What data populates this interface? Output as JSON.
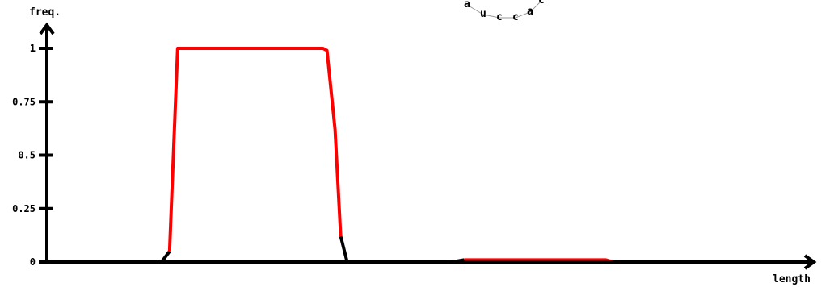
{
  "chart_data": {
    "type": "line",
    "ylabel": "freq.",
    "xlabel": "length",
    "ylim": [
      0,
      1
    ],
    "yticks": [
      {
        "value": 0,
        "label": "0"
      },
      {
        "value": 0.25,
        "label": "0.25"
      },
      {
        "value": 0.5,
        "label": "0.5"
      },
      {
        "value": 0.75,
        "label": "0.75"
      },
      {
        "value": 1,
        "label": "1"
      }
    ],
    "colors": {
      "axis": "#000000",
      "high": "#ff0000",
      "low": "#000000",
      "baseline": "#c0c0c0"
    },
    "segments": [
      {
        "color": "#000000",
        "points": [
          [
            0,
            0
          ],
          [
            140,
            0
          ]
        ]
      },
      {
        "color": "#000000",
        "points": [
          [
            140,
            0
          ],
          [
            150,
            0.05
          ]
        ]
      },
      {
        "color": "#ff0000",
        "points": [
          [
            150,
            0.05
          ],
          [
            160,
            1
          ],
          [
            340,
            1
          ],
          [
            345,
            0.99
          ],
          [
            355,
            0.62
          ],
          [
            362,
            0.12
          ]
        ]
      },
      {
        "color": "#000000",
        "points": [
          [
            362,
            0.12
          ],
          [
            370,
            0
          ],
          [
            500,
            0
          ],
          [
            515,
            0.01
          ]
        ]
      },
      {
        "color": "#ff0000",
        "points": [
          [
            515,
            0.01
          ],
          [
            690,
            0.01
          ],
          [
            700,
            0
          ]
        ]
      },
      {
        "color": "#000000",
        "points": [
          [
            700,
            0
          ],
          [
            935,
            0
          ]
        ]
      }
    ],
    "baseline_range": [
      140,
      375
    ],
    "xmax": 935,
    "sequence_label": [
      "a",
      "u",
      "c",
      "c",
      "a",
      "c"
    ]
  }
}
